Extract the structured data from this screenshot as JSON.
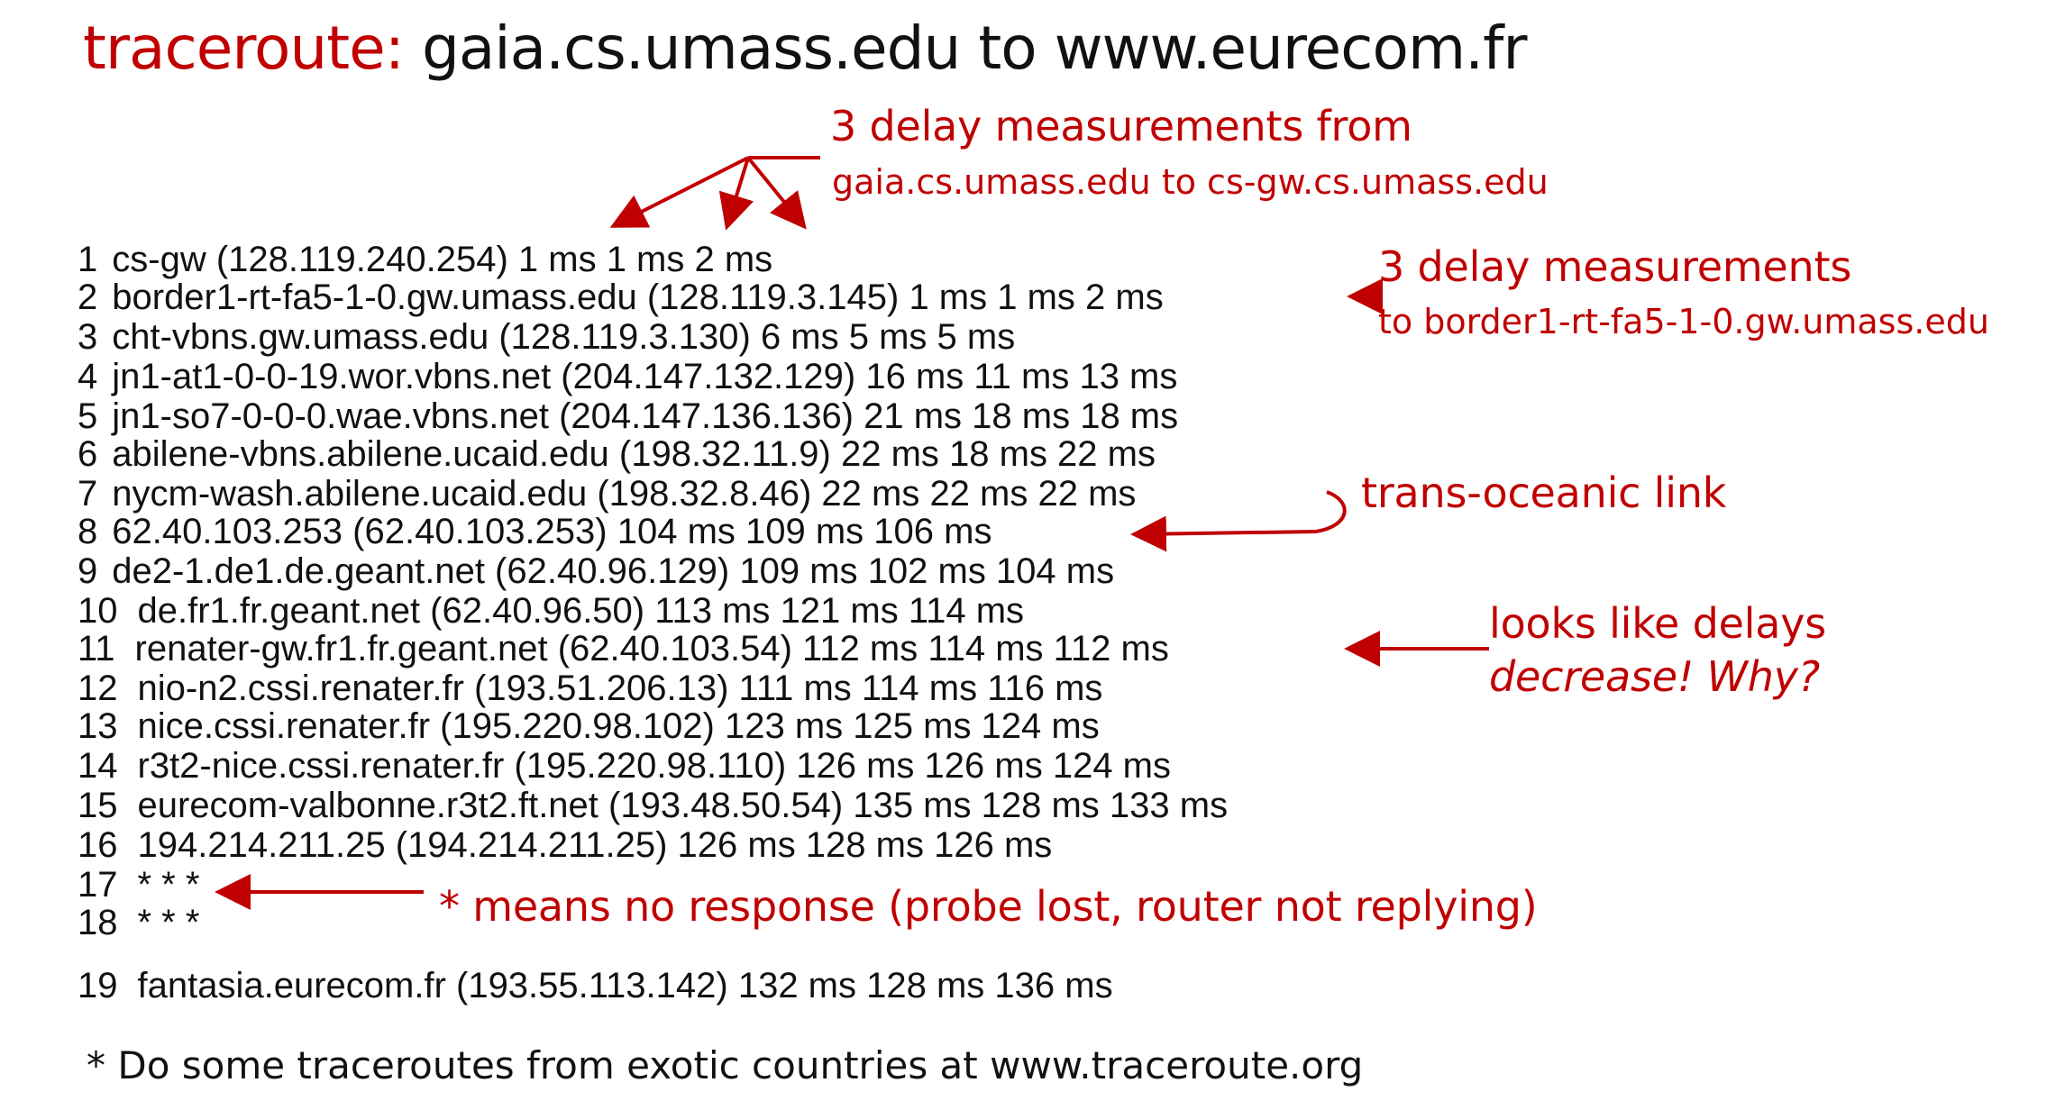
{
  "title": {
    "prefix": "traceroute:",
    "rest": "gaia.cs.umass.edu to www.eurecom.fr"
  },
  "trace_rows": [
    {
      "hop": "1",
      "text": "cs-gw (128.119.240.254)  1 ms  1 ms  2 ms"
    },
    {
      "hop": "2",
      "text": "border1-rt-fa5-1-0.gw.umass.edu (128.119.3.145)  1 ms  1 ms  2 ms"
    },
    {
      "hop": "3",
      "text": "cht-vbns.gw.umass.edu (128.119.3.130)  6 ms 5 ms 5 ms"
    },
    {
      "hop": "4",
      "text": "jn1-at1-0-0-19.wor.vbns.net (204.147.132.129)  16 ms 11 ms 13 ms"
    },
    {
      "hop": "5",
      "text": "jn1-so7-0-0-0.wae.vbns.net (204.147.136.136)  21 ms 18 ms 18 ms"
    },
    {
      "hop": "6",
      "text": "abilene-vbns.abilene.ucaid.edu (198.32.11.9)  22 ms  18 ms  22 ms"
    },
    {
      "hop": "7",
      "text": "nycm-wash.abilene.ucaid.edu (198.32.8.46)  22 ms  22 ms  22 ms"
    },
    {
      "hop": "8",
      "text": "62.40.103.253 (62.40.103.253)  104 ms 109 ms 106 ms"
    },
    {
      "hop": "9",
      "text": "de2-1.de1.de.geant.net (62.40.96.129)  109 ms 102 ms 104 ms"
    },
    {
      "hop": "10",
      "text": "de.fr1.fr.geant.net (62.40.96.50)  113 ms 121 ms 114 ms"
    },
    {
      "hop": "11",
      "text": "renater-gw.fr1.fr.geant.net (62.40.103.54)  112 ms  114 ms  112 ms"
    },
    {
      "hop": "12",
      "text": "nio-n2.cssi.renater.fr (193.51.206.13)  111 ms  114 ms  116 ms"
    },
    {
      "hop": "13",
      "text": "nice.cssi.renater.fr (195.220.98.102)  123 ms  125 ms  124 ms"
    },
    {
      "hop": "14",
      "text": "r3t2-nice.cssi.renater.fr (195.220.98.110)  126 ms  126 ms  124 ms"
    },
    {
      "hop": "15",
      "text": "eurecom-valbonne.r3t2.ft.net (193.48.50.54)  135 ms  128 ms  133 ms"
    },
    {
      "hop": "16",
      "text": "194.214.211.25 (194.214.211.25)  126 ms  128 ms  126 ms"
    },
    {
      "hop": "17",
      "text": "* * *"
    },
    {
      "hop": "18",
      "text": "* * *"
    },
    {
      "hop": "19",
      "text": "fantasia.eurecom.fr (193.55.113.142)  132 ms  128 ms  136 ms"
    }
  ],
  "annotations": {
    "first_hop_title": "3 delay measurements from",
    "first_hop_subtitle": "gaia.cs.umass.edu to cs-gw.cs.umass.edu",
    "second_hop_title": "3 delay measurements",
    "second_hop_subtitle": "to border1-rt-fa5-1-0.gw.umass.edu",
    "transoceanic": "trans-oceanic link",
    "delay_line1": "looks like delays",
    "delay_line2": "decrease! Why?",
    "no_response": "* means no response (probe lost, router not replying)"
  },
  "footer": "* Do some traceroutes from exotic countries at www.traceroute.org",
  "colors": {
    "accent": "#c00000",
    "text": "#111111",
    "background": "#ffffff"
  }
}
